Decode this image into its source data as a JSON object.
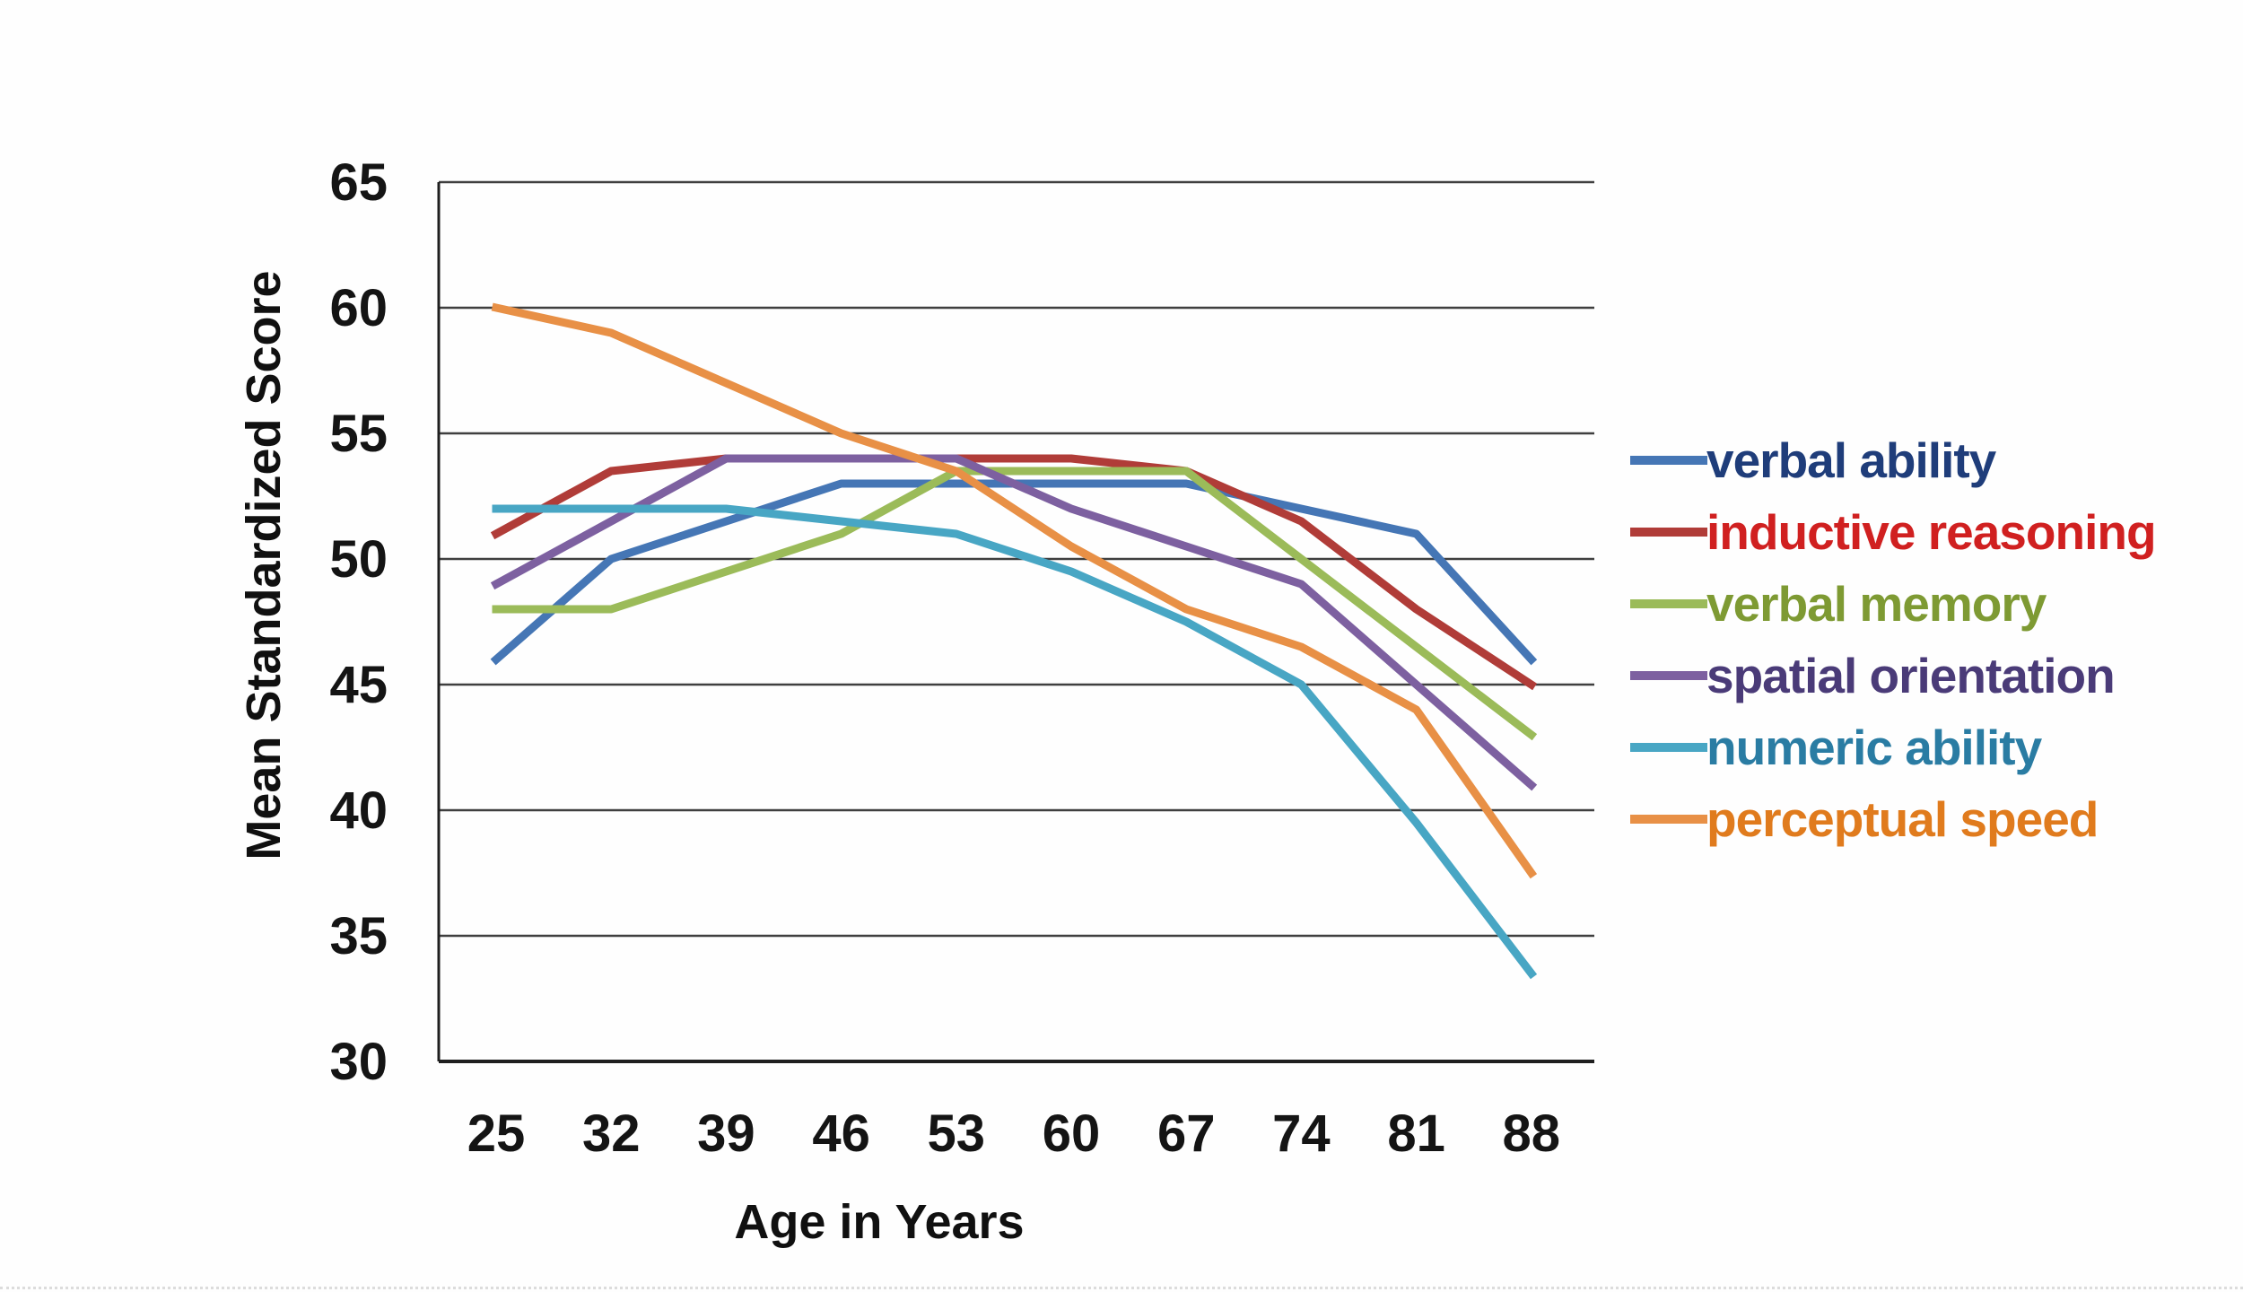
{
  "chart_data": {
    "type": "line",
    "xlabel": "Age in Years",
    "ylabel": "Mean Standardized Score",
    "x": [
      25,
      32,
      39,
      46,
      53,
      60,
      67,
      74,
      81,
      88
    ],
    "x_tick_labels": [
      "25",
      "32",
      "39",
      "46",
      "53",
      "60",
      "67",
      "74",
      "81",
      "88"
    ],
    "y_tick_labels": [
      "65",
      "60",
      "55",
      "50",
      "45",
      "40",
      "35",
      "30"
    ],
    "ylim": [
      30,
      65
    ],
    "ytick_step": 5,
    "grid": true,
    "legend_position": "right-middle",
    "gridline_color": "#3f3f3f",
    "axis_color": "#1f1f1f",
    "tick_text_color": "#141414",
    "series": [
      {
        "name": "verbal ability",
        "line_color": "#4576b5",
        "label_color": "#1f3d7a",
        "values": [
          46,
          50,
          51.5,
          53,
          53,
          53,
          53,
          52,
          51,
          46
        ]
      },
      {
        "name": "inductive reasoning",
        "line_color": "#b03c38",
        "label_color": "#d02020",
        "values": [
          51,
          53.5,
          54,
          54,
          54,
          54,
          53.5,
          51.5,
          48,
          45
        ]
      },
      {
        "name": "verbal memory",
        "line_color": "#9bbb59",
        "label_color": "#7e9a33",
        "values": [
          48,
          48,
          49.5,
          51,
          53.5,
          53.5,
          53.5,
          50,
          46.5,
          43
        ]
      },
      {
        "name": "spatial orientation",
        "line_color": "#7d60a0",
        "label_color": "#4a3b78",
        "values": [
          49,
          51.5,
          54,
          54,
          54,
          52,
          50.5,
          49,
          45,
          41
        ]
      },
      {
        "name": "numeric ability",
        "line_color": "#48a6c4",
        "label_color": "#2a7ca3",
        "values": [
          52,
          52,
          52,
          51.5,
          51,
          49.5,
          47.5,
          45,
          39.5,
          33.5
        ]
      },
      {
        "name": "perceptual speed",
        "line_color": "#e89046",
        "label_color": "#e07b1d",
        "values": [
          60,
          59,
          57,
          55,
          53.5,
          50.5,
          48,
          46.5,
          44,
          37.5
        ]
      }
    ]
  }
}
